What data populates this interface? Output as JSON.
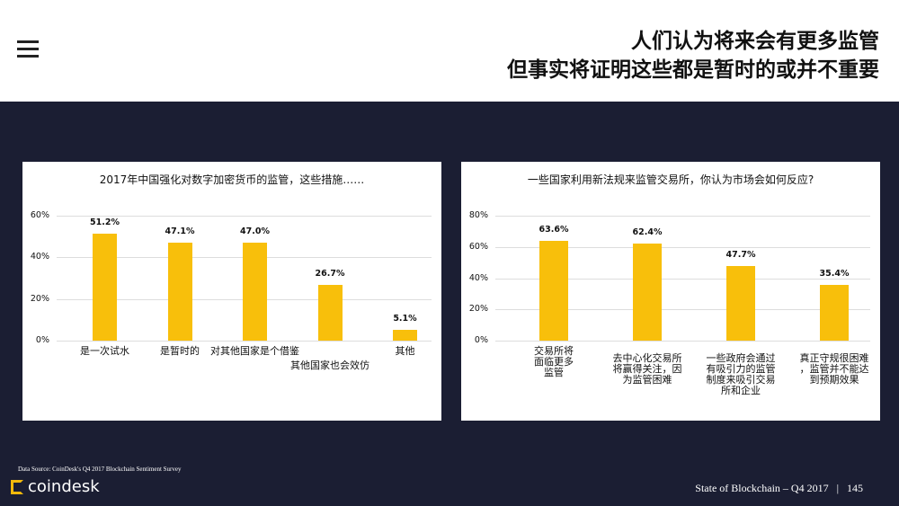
{
  "header": {
    "title_line1": "人们认为将来会有更多监管",
    "title_line2": "但事实将证明这些都是暂时的或并不重要"
  },
  "footer": {
    "source": "Data Source: CoinDesk's Q4 2017 Blockchain Sentiment Survey",
    "logo": "coindesk",
    "report": "State of Blockchain – Q4 2017",
    "separator": "|",
    "page": "145"
  },
  "colors": {
    "bar": "#f8bf0b",
    "background": "#1b1e33"
  },
  "chart_data": [
    {
      "type": "bar",
      "title": "2017年中国强化对数字加密货币的监管，这些措施……",
      "categories": [
        "是一次试水",
        "是暂时的",
        "对其他国家是个借鉴",
        "其他国家也会效仿",
        "其他"
      ],
      "values": [
        51.2,
        47.1,
        47.0,
        26.7,
        5.1
      ],
      "value_labels": [
        "51.2%",
        "47.1%",
        "47.0%",
        "26.7%",
        "5.1%"
      ],
      "yticks": [
        "0%",
        "20%",
        "40%",
        "60%"
      ],
      "ylim": [
        0,
        60
      ],
      "grid": true
    },
    {
      "type": "bar",
      "title": "一些国家利用新法规来监管交易所，你认为市场会如何反应?",
      "categories": [
        "交易所将\n面临更多\n监管",
        "去中心化交易所\n将赢得关注，因\n为监管困难",
        "一些政府会通过\n有吸引力的监管\n制度来吸引交易\n所和企业",
        "真正守规很困难\n，监管并不能达\n到预期效果"
      ],
      "values": [
        63.6,
        62.4,
        47.7,
        35.4
      ],
      "value_labels": [
        "63.6%",
        "62.4%",
        "47.7%",
        "35.4%"
      ],
      "yticks": [
        "0%",
        "20%",
        "40%",
        "60%",
        "80%"
      ],
      "ylim": [
        0,
        80
      ],
      "grid": true
    }
  ]
}
